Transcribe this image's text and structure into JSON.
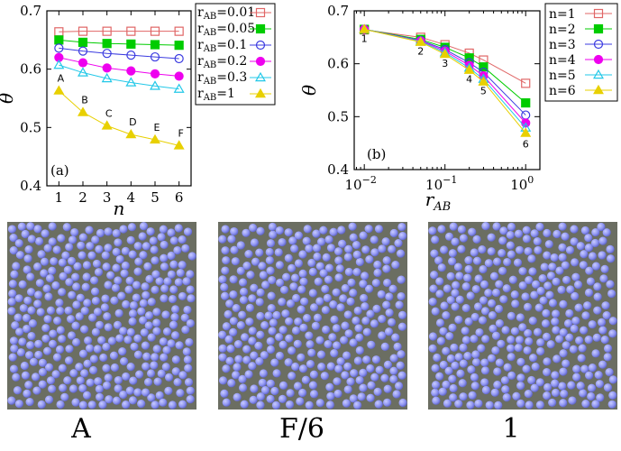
{
  "chart_data": [
    {
      "type": "line",
      "panel_label": "(a)",
      "xlabel": "n",
      "ylabel": "θ",
      "xlim": [
        0.5,
        6.5
      ],
      "ylim": [
        0.4,
        0.7
      ],
      "xticks": [
        "1",
        "2",
        "3",
        "4",
        "5",
        "6"
      ],
      "xtick_values": [
        1,
        2,
        3,
        4,
        5,
        6
      ],
      "yticks": [
        "0.4",
        "0.5",
        "0.6",
        "0.7"
      ],
      "ytick_values": [
        0.4,
        0.5,
        0.6,
        0.7
      ],
      "legend_position": "right",
      "x": [
        1,
        2,
        3,
        4,
        5,
        6
      ],
      "series": [
        {
          "name": "r",
          "sub": "AB",
          "suffix": "=0.01",
          "color": "#e06666",
          "marker": "open-square",
          "values": [
            0.664,
            0.665,
            0.665,
            0.665,
            0.665,
            0.665
          ]
        },
        {
          "name": "r",
          "sub": "AB",
          "suffix": "=0.05",
          "color": "#00cc00",
          "marker": "filled-square",
          "values": [
            0.65,
            0.646,
            0.644,
            0.643,
            0.642,
            0.641
          ]
        },
        {
          "name": "r",
          "sub": "AB",
          "suffix": "=0.1",
          "color": "#3b3be0",
          "marker": "open-circle",
          "values": [
            0.636,
            0.631,
            0.627,
            0.624,
            0.621,
            0.618
          ]
        },
        {
          "name": "r",
          "sub": "AB",
          "suffix": "=0.2",
          "color": "#ee00ee",
          "marker": "filled-circle",
          "values": [
            0.62,
            0.611,
            0.602,
            0.597,
            0.592,
            0.588
          ]
        },
        {
          "name": "r",
          "sub": "AB",
          "suffix": "=0.3",
          "color": "#22c8e8",
          "marker": "open-triangle",
          "values": [
            0.607,
            0.594,
            0.584,
            0.577,
            0.571,
            0.566
          ]
        },
        {
          "name": "r",
          "sub": "AB",
          "suffix": "=1",
          "color": "#e8d000",
          "marker": "filled-triangle",
          "values": [
            0.563,
            0.526,
            0.503,
            0.488,
            0.479,
            0.469
          ]
        }
      ],
      "annotations": [
        "A",
        "B",
        "C",
        "D",
        "E",
        "F"
      ]
    },
    {
      "type": "line",
      "panel_label": "(b)",
      "xlabel": "r",
      "xlabel_sub": "AB",
      "ylabel": "θ",
      "xscale": "log",
      "xlim": [
        0.0075,
        1.5
      ],
      "ylim": [
        0.4,
        0.7
      ],
      "xticks": [
        "10",
        "10",
        "10"
      ],
      "xtick_exponents": [
        "−2",
        "−1",
        "0"
      ],
      "xtick_values": [
        0.01,
        0.1,
        1
      ],
      "yticks": [
        "0.4",
        "0.5",
        "0.6",
        "0.7"
      ],
      "ytick_values": [
        0.4,
        0.5,
        0.6,
        0.7
      ],
      "legend_position": "top-right",
      "x": [
        0.01,
        0.05,
        0.1,
        0.2,
        0.3,
        1
      ],
      "series": [
        {
          "name": "n=1",
          "color": "#e06666",
          "marker": "open-square",
          "values": [
            0.664,
            0.65,
            0.636,
            0.62,
            0.607,
            0.563
          ]
        },
        {
          "name": "n=2",
          "color": "#00cc00",
          "marker": "filled-square",
          "values": [
            0.665,
            0.646,
            0.631,
            0.611,
            0.594,
            0.526
          ]
        },
        {
          "name": "n=3",
          "color": "#3b3be0",
          "marker": "open-circle",
          "values": [
            0.665,
            0.644,
            0.627,
            0.602,
            0.584,
            0.503
          ]
        },
        {
          "name": "n=4",
          "color": "#ee00ee",
          "marker": "filled-circle",
          "values": [
            0.665,
            0.643,
            0.624,
            0.597,
            0.577,
            0.488
          ]
        },
        {
          "name": "n=5",
          "color": "#22c8e8",
          "marker": "open-triangle",
          "values": [
            0.665,
            0.642,
            0.621,
            0.592,
            0.571,
            0.479
          ]
        },
        {
          "name": "n=6",
          "color": "#e8d000",
          "marker": "filled-triangle",
          "values": [
            0.665,
            0.641,
            0.618,
            0.588,
            0.566,
            0.469
          ]
        }
      ],
      "annotations": [
        "1",
        "2",
        "3",
        "4",
        "5",
        "6"
      ]
    }
  ],
  "snapshots": {
    "particle_color": "#8f95f2",
    "background_color": "#6b6e62",
    "captions": [
      "A",
      "F/6",
      "1"
    ]
  }
}
